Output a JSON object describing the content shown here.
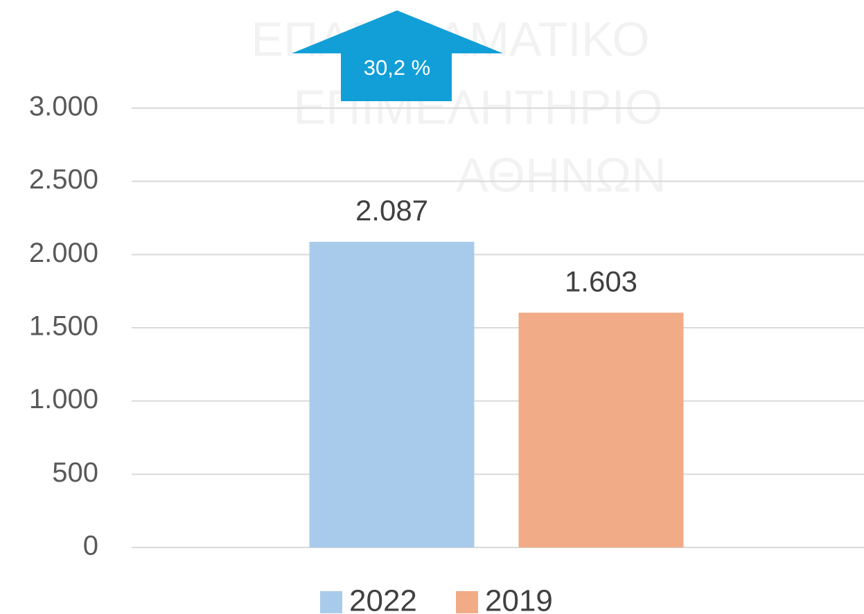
{
  "chart_data": {
    "type": "bar",
    "categories": [
      null
    ],
    "series": [
      {
        "name": "2022",
        "color": "#a9cbeb",
        "values": [
          2087
        ],
        "value_labels": [
          "2.087"
        ]
      },
      {
        "name": "2019",
        "color": "#f1ab86",
        "values": [
          1603
        ],
        "value_labels": [
          "1.603"
        ]
      }
    ],
    "ylim": [
      0,
      3000
    ],
    "yticks": [
      0,
      500,
      {
        "value": 1000,
        "label": "1.000"
      },
      {
        "value": 1500,
        "label": "1.500"
      },
      {
        "value": 2000,
        "label": "2.000"
      },
      {
        "value": 2500,
        "label": "2.500"
      },
      {
        "value": 3000,
        "label": "3.000"
      }
    ],
    "grid": true,
    "legend": "bottom",
    "annotation": {
      "text": "30,2 %",
      "color": "#129fd7"
    }
  },
  "watermark": [
    "ΕΠΑΓΓΕΛΜΑΤΙΚΟ",
    "ΕΠΙΜΕΛΗΤΗΡΙΟ",
    "ΑΘΗΝΩΝ"
  ]
}
